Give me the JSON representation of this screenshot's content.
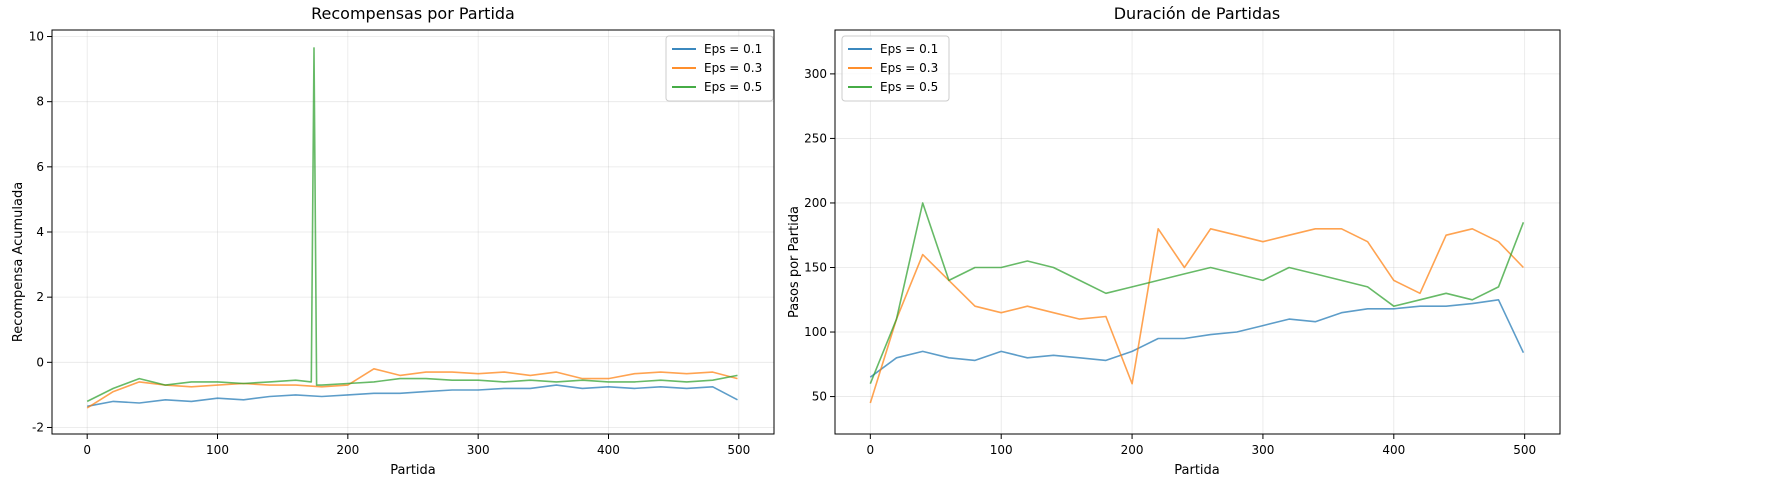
{
  "chart_data": [
    {
      "type": "line",
      "title": "Recompensas por Partida",
      "xlabel": "Partida",
      "ylabel": "Recompensa Acumulada",
      "xlim": [
        -27,
        527
      ],
      "ylim": [
        -2.2,
        10.2
      ],
      "xticks": [
        0,
        100,
        200,
        300,
        400,
        500
      ],
      "yticks": [
        -2,
        0,
        2,
        4,
        6,
        8,
        10
      ],
      "grid": true,
      "legend": "top-right",
      "series": [
        {
          "name": "Eps = 0.1",
          "color": "#1f77b4",
          "x": [
            0,
            20,
            40,
            60,
            80,
            100,
            120,
            140,
            160,
            180,
            200,
            220,
            240,
            260,
            280,
            300,
            320,
            340,
            360,
            380,
            400,
            420,
            440,
            460,
            480,
            499
          ],
          "y": [
            -1.35,
            -1.2,
            -1.25,
            -1.15,
            -1.2,
            -1.1,
            -1.15,
            -1.05,
            -1.0,
            -1.05,
            -1.0,
            -0.95,
            -0.95,
            -0.9,
            -0.85,
            -0.85,
            -0.8,
            -0.8,
            -0.7,
            -0.8,
            -0.75,
            -0.8,
            -0.75,
            -0.8,
            -0.75,
            -1.15
          ]
        },
        {
          "name": "Eps = 0.3",
          "color": "#ff7f0e",
          "x": [
            0,
            20,
            40,
            60,
            80,
            100,
            120,
            140,
            160,
            180,
            200,
            220,
            240,
            260,
            280,
            300,
            320,
            340,
            360,
            380,
            400,
            420,
            440,
            460,
            480,
            499
          ],
          "y": [
            -1.4,
            -0.9,
            -0.6,
            -0.7,
            -0.75,
            -0.7,
            -0.65,
            -0.7,
            -0.7,
            -0.75,
            -0.7,
            -0.2,
            -0.4,
            -0.3,
            -0.3,
            -0.35,
            -0.3,
            -0.4,
            -0.3,
            -0.5,
            -0.5,
            -0.35,
            -0.3,
            -0.35,
            -0.3,
            -0.5
          ]
        },
        {
          "name": "Eps = 0.5",
          "color": "#2ca02c",
          "x": [
            0,
            20,
            40,
            60,
            80,
            100,
            120,
            140,
            160,
            172,
            174,
            176,
            180,
            200,
            220,
            240,
            260,
            280,
            300,
            320,
            340,
            360,
            380,
            400,
            420,
            440,
            460,
            480,
            499
          ],
          "y": [
            -1.2,
            -0.8,
            -0.5,
            -0.7,
            -0.6,
            -0.6,
            -0.65,
            -0.6,
            -0.55,
            -0.6,
            9.65,
            -0.7,
            -0.7,
            -0.65,
            -0.6,
            -0.5,
            -0.5,
            -0.55,
            -0.55,
            -0.6,
            -0.55,
            -0.6,
            -0.55,
            -0.6,
            -0.6,
            -0.55,
            -0.6,
            -0.55,
            -0.4
          ]
        }
      ]
    },
    {
      "type": "line",
      "title": "Duración de Partidas",
      "xlabel": "Partida",
      "ylabel": "Pasos por Partida",
      "xlim": [
        -27,
        527
      ],
      "ylim": [
        21,
        334
      ],
      "xticks": [
        0,
        100,
        200,
        300,
        400,
        500
      ],
      "yticks": [
        50,
        100,
        150,
        200,
        250,
        300
      ],
      "grid": true,
      "legend": "top-left",
      "series": [
        {
          "name": "Eps = 0.1",
          "color": "#1f77b4",
          "x": [
            0,
            20,
            40,
            60,
            80,
            100,
            120,
            140,
            160,
            180,
            200,
            220,
            240,
            260,
            280,
            300,
            320,
            340,
            360,
            380,
            400,
            420,
            440,
            460,
            480,
            499
          ],
          "y": [
            65,
            80,
            85,
            80,
            78,
            85,
            80,
            82,
            80,
            78,
            85,
            95,
            95,
            98,
            100,
            105,
            110,
            108,
            115,
            118,
            118,
            120,
            120,
            122,
            125,
            84
          ]
        },
        {
          "name": "Eps = 0.3",
          "color": "#ff7f0e",
          "x": [
            0,
            20,
            40,
            60,
            80,
            100,
            120,
            140,
            160,
            180,
            200,
            220,
            240,
            260,
            280,
            300,
            320,
            340,
            360,
            380,
            400,
            420,
            440,
            460,
            480,
            499
          ],
          "y": [
            45,
            110,
            160,
            140,
            120,
            115,
            120,
            115,
            110,
            112,
            60,
            180,
            150,
            180,
            175,
            170,
            175,
            180,
            180,
            170,
            140,
            130,
            175,
            180,
            170,
            150
          ]
        },
        {
          "name": "Eps = 0.5",
          "color": "#2ca02c",
          "x": [
            0,
            20,
            40,
            60,
            80,
            100,
            120,
            140,
            160,
            180,
            200,
            220,
            240,
            260,
            280,
            300,
            320,
            340,
            360,
            380,
            400,
            420,
            440,
            460,
            480,
            499
          ],
          "y": [
            60,
            110,
            200,
            140,
            150,
            150,
            155,
            150,
            140,
            130,
            135,
            140,
            145,
            150,
            145,
            140,
            150,
            145,
            140,
            135,
            120,
            125,
            130,
            125,
            135,
            185
          ]
        }
      ]
    }
  ]
}
